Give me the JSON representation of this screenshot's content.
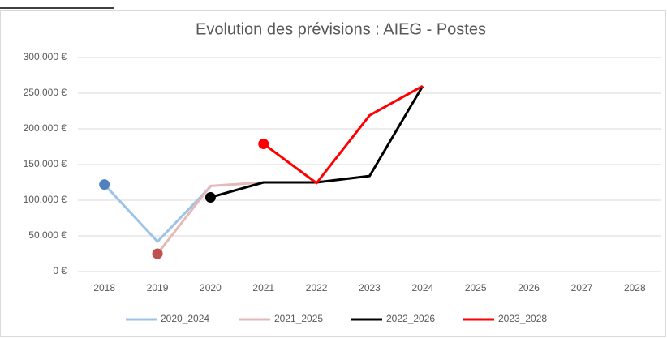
{
  "chart_data": {
    "type": "line",
    "title": "Evolution des prévisions : AIEG - Postes",
    "categories": [
      "2018",
      "2019",
      "2020",
      "2021",
      "2022",
      "2023",
      "2024",
      "2025",
      "2026",
      "2027",
      "2028"
    ],
    "series": [
      {
        "name": "2020_2024",
        "color": "#9dc3e6",
        "marker_color": "#4f81bd",
        "values": [
          122000,
          42000,
          119000,
          null,
          null,
          null,
          null,
          null,
          null,
          null,
          null
        ]
      },
      {
        "name": "2021_2025",
        "color": "#e6b8b7",
        "marker_color": "#c0504d",
        "values": [
          null,
          25000,
          120000,
          125000,
          null,
          null,
          null,
          null,
          null,
          null,
          null
        ]
      },
      {
        "name": "2022_2026",
        "color": "#000000",
        "marker_color": "#000000",
        "values": [
          null,
          null,
          104000,
          125000,
          125000,
          134000,
          260000,
          null,
          null,
          null,
          null
        ]
      },
      {
        "name": "2023_2028",
        "color": "#ff0000",
        "marker_color": "#ff0000",
        "values": [
          null,
          null,
          null,
          179000,
          124000,
          219000,
          260000,
          null,
          null,
          null,
          null
        ]
      }
    ],
    "ylim": [
      0,
      300000
    ],
    "yticks": [
      {
        "value": 0,
        "label": "0 €"
      },
      {
        "value": 50000,
        "label": "50.000 €"
      },
      {
        "value": 100000,
        "label": "100.000 €"
      },
      {
        "value": 150000,
        "label": "150.000 €"
      },
      {
        "value": 200000,
        "label": "200.000 €"
      },
      {
        "value": 250000,
        "label": "250.000 €"
      },
      {
        "value": 300000,
        "label": "300.000 €"
      }
    ],
    "grid": true,
    "legend": "bottom"
  }
}
